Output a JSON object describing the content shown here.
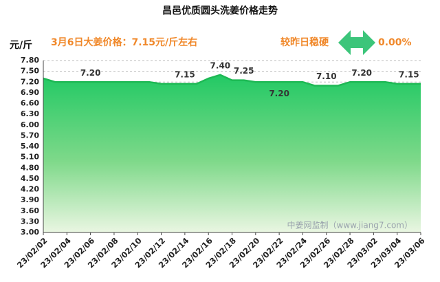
{
  "chart_data": {
    "type": "area",
    "title": "昌邑优质圆头洗姜价格走势",
    "y_label": "元/斤",
    "annotation": "3月6日大姜价格：7.15元/斤左右",
    "change_label": "较昨日稳硬",
    "change_value": "0.00%",
    "watermark": "中姜网监制（www.jiang7.com）",
    "categories": [
      "23/02/02",
      null,
      "23/02/04",
      null,
      "23/02/06",
      null,
      "23/02/08",
      null,
      "23/02/10",
      null,
      "23/02/12",
      null,
      "23/02/14",
      null,
      "23/02/16",
      null,
      "23/02/18",
      null,
      "23/02/20",
      null,
      "23/02/22",
      null,
      "23/02/24",
      null,
      "23/02/26",
      null,
      "23/02/28",
      null,
      "23/03/02",
      null,
      "23/03/04",
      null,
      "23/03/06"
    ],
    "values": [
      7.3,
      7.2,
      7.2,
      7.2,
      7.2,
      7.2,
      7.2,
      7.2,
      7.2,
      7.2,
      7.15,
      7.15,
      7.15,
      7.15,
      7.3,
      7.4,
      7.25,
      7.25,
      7.2,
      7.2,
      7.2,
      7.2,
      7.2,
      7.1,
      7.1,
      7.1,
      7.2,
      7.2,
      7.2,
      7.2,
      7.15,
      7.15,
      7.15
    ],
    "value_labels": [
      null,
      null,
      null,
      null,
      "7.20",
      null,
      null,
      null,
      null,
      null,
      null,
      null,
      "7.15",
      null,
      null,
      "7.40",
      null,
      "7.25",
      null,
      null,
      "7.20",
      null,
      null,
      null,
      "7.10",
      null,
      null,
      "7.20",
      null,
      null,
      null,
      "7.15",
      null
    ],
    "color": "#1db954",
    "ylim": [
      3.0,
      7.8
    ],
    "yticks": [
      {
        "value": 3.0,
        "label": "3.00"
      },
      {
        "value": 3.3,
        "label": "3.30"
      },
      {
        "value": 3.6,
        "label": "3.60"
      },
      {
        "value": 3.9,
        "label": "3.90"
      },
      {
        "value": 4.2,
        "label": "4.20"
      },
      {
        "value": 4.5,
        "label": "4.50"
      },
      {
        "value": 4.8,
        "label": "4.80"
      },
      {
        "value": 5.1,
        "label": "5.10"
      },
      {
        "value": 5.4,
        "label": "5.40"
      },
      {
        "value": 5.7,
        "label": "5.70"
      },
      {
        "value": 6.0,
        "label": "6.00"
      },
      {
        "value": 6.3,
        "label": "6.30"
      },
      {
        "value": 6.6,
        "label": "6.60"
      },
      {
        "value": 6.9,
        "label": "6.90"
      },
      {
        "value": 7.2,
        "label": "7.20"
      },
      {
        "value": 7.5,
        "label": "7.50"
      },
      {
        "value": 7.8,
        "label": "7.80"
      }
    ],
    "grid": true
  }
}
